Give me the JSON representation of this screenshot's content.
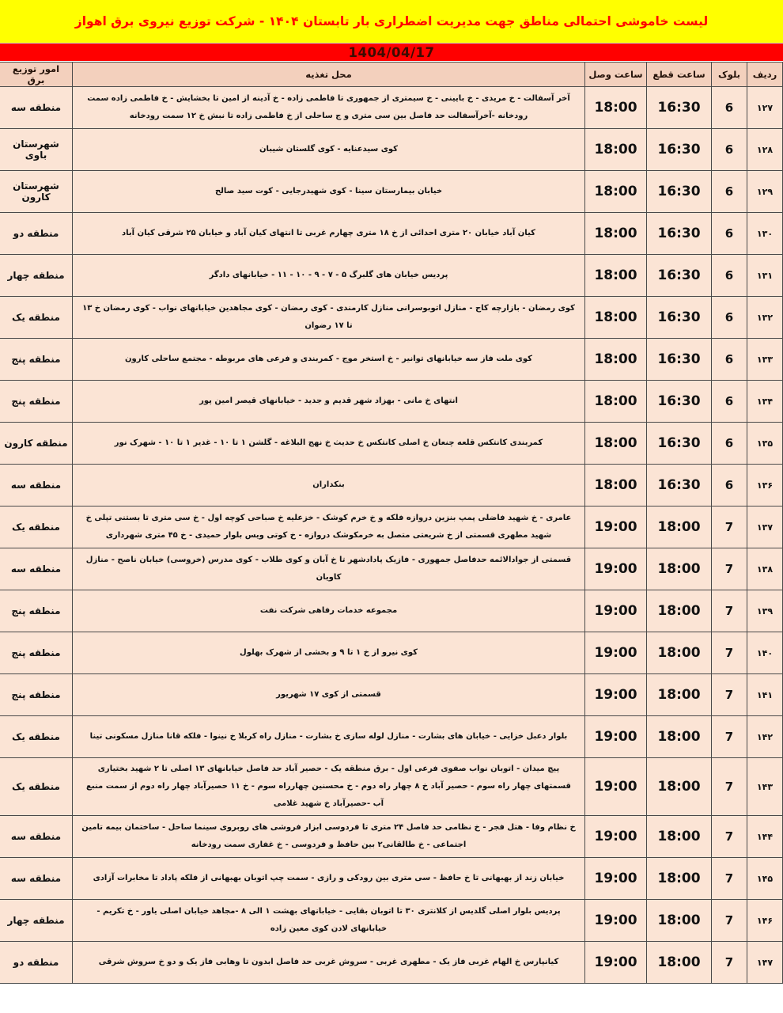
{
  "banner": {
    "title": "لیست خاموشی احتمالی مناطق جهت مدیریت اضطراری بار تابستان ۱۴۰۴ - شرکت توزیع نیروی برق اهواز"
  },
  "date_bar": {
    "date": "1404/04/17"
  },
  "colors": {
    "banner_bg": "#ffff00",
    "banner_text": "#ff0000",
    "date_bg": "#ff0000",
    "cell_bg": "#fbe4d5",
    "header_bg": "#f3d0bd",
    "border": "#4a4a4a"
  },
  "table": {
    "headers": {
      "row": "ردیف",
      "block": "بلوک",
      "cut_time": "ساعت قطع",
      "reconnect_time": "ساعت وصل",
      "location": "محل تغذیه",
      "district": "امور توزیع برق"
    },
    "rows": [
      {
        "row": "۱۲۷",
        "block": "6",
        "cut_time": "16:30",
        "reconnect_time": "18:00",
        "location": "آخر آسفالت - خ مریدی - خ بایینی - خ سیمتری از جمهوری تا فاطمی زاده - خ آدینه از امین تا بخشایش - خ فاطمی زاده سمت رودخانه -آخرآسفالت حد فاصل بین سی متری و ج ساحلی از خ فاطمی زاده تا نبش خ ۱۲ سمت رودخانه",
        "district": "منطقه سه"
      },
      {
        "row": "۱۲۸",
        "block": "6",
        "cut_time": "16:30",
        "reconnect_time": "18:00",
        "location": "کوی سیدعنایه - کوی گلستان شیبان",
        "district": "شهرستان باوی"
      },
      {
        "row": "۱۲۹",
        "block": "6",
        "cut_time": "16:30",
        "reconnect_time": "18:00",
        "location": "خیابان بیمارستان سینا - کوی شهیدرجایی - کوت سید صالح",
        "district": "شهرستان کارون"
      },
      {
        "row": "۱۳۰",
        "block": "6",
        "cut_time": "16:30",
        "reconnect_time": "18:00",
        "location": "کیان آباد خیابان ۲۰ متری احدائی از خ ۱۸ متری چهارم غربی تا انتهای کیان آباد و خیابان ۲۵ شرقی کیان آباد",
        "district": "منطقه دو"
      },
      {
        "row": "۱۳۱",
        "block": "6",
        "cut_time": "16:30",
        "reconnect_time": "18:00",
        "location": "پردیس خیابان های گلبرگ ۵ - ۷ - ۹ - ۱۰ - ۱۱ - خیابانهای دادگر",
        "district": "منطقه چهار"
      },
      {
        "row": "۱۳۲",
        "block": "6",
        "cut_time": "16:30",
        "reconnect_time": "18:00",
        "location": "کوی رمضان - بازارچه کاج - منازل اتوبوسرانی منازل کارمندی - کوی رمضان - کوی مجاهدین خیابانهای نواب - کوی رمضان خ ۱۳ تا ۱۷ رضوان",
        "district": "منطقه یک"
      },
      {
        "row": "۱۳۳",
        "block": "6",
        "cut_time": "16:30",
        "reconnect_time": "18:00",
        "location": "کوی ملت فاز سه خیابانهای توانیر - خ استخر موج - کمربندی و فرعی های مربوطه - مجتمع ساحلی کارون",
        "district": "منطقه پنج"
      },
      {
        "row": "۱۳۴",
        "block": "6",
        "cut_time": "16:30",
        "reconnect_time": "18:00",
        "location": "انتهای خ مانی - بهزاد شهر قدیم و جدید - خیابانهای قیصر امین پور",
        "district": "منطقه پنج"
      },
      {
        "row": "۱۳۵",
        "block": "6",
        "cut_time": "16:30",
        "reconnect_time": "18:00",
        "location": "کمربندی کانتکس قلعه چنعان خ اصلی کانتکس خ حدیث خ نهج البلاغه - گلشن ۱ تا ۱۰ - غدیر ۱ تا ۱۰ - شهرک نور",
        "district": "منطقه کارون"
      },
      {
        "row": "۱۳۶",
        "block": "6",
        "cut_time": "16:30",
        "reconnect_time": "18:00",
        "location": "بنکداران",
        "district": "منطقه سه"
      },
      {
        "row": "۱۳۷",
        "block": "7",
        "cut_time": "18:00",
        "reconnect_time": "19:00",
        "location": "عامری - خ شهید فاضلی پمپ بنزین دروازه فلکه و خ خرم کوشک - خزعلیه خ صباحی کوچه اول - خ سی متری تا بستنی تپلی خ شهید مطهری قسمتی از خ شریعتی متصل به خرمکوشک دروازه - خ کوتی ویس بلوار حمیدی - خ ۴۵ متری شهرداری",
        "district": "منطقه یک"
      },
      {
        "row": "۱۳۸",
        "block": "7",
        "cut_time": "18:00",
        "reconnect_time": "19:00",
        "location": "قسمتی از جوادالائمه حدفاصل جمهوری - فازیک پادادشهر تا خ آبان و کوی طلاب - کوی مدرس (خروسی) خیابان ناصح - منازل کاویان",
        "district": "منطقه سه"
      },
      {
        "row": "۱۳۹",
        "block": "7",
        "cut_time": "18:00",
        "reconnect_time": "19:00",
        "location": "مجموعه خدمات رفاهی شرکت نفت",
        "district": "منطقه پنج"
      },
      {
        "row": "۱۴۰",
        "block": "7",
        "cut_time": "18:00",
        "reconnect_time": "19:00",
        "location": "کوی نیرو از خ ۱ تا ۹ و بخشی از شهرک بهلول",
        "district": "منطقه پنج"
      },
      {
        "row": "۱۴۱",
        "block": "7",
        "cut_time": "18:00",
        "reconnect_time": "19:00",
        "location": "قسمتی از کوی ۱۷ شهریور",
        "district": "منطقه پنج"
      },
      {
        "row": "۱۴۲",
        "block": "7",
        "cut_time": "18:00",
        "reconnect_time": "19:00",
        "location": "بلوار دعبل خزایی - خیابان های بشارت - منازل لوله سازی خ بشارت - منازل راه کربلا خ نینوا - فلکه قانا منازل مسکونی تینا",
        "district": "منطقه یک"
      },
      {
        "row": "۱۴۳",
        "block": "7",
        "cut_time": "18:00",
        "reconnect_time": "19:00",
        "location": "پیچ میدان - اتوبان نواب صفوی فرعی اول - برق منطقه یک - حصیر آباد حد فاصل خیابانهای ۱۳ اصلی تا ۲ شهید بختیاری قسمتهای چهار راه سوم - حصیر آباد خ ۸ چهار راه دوم - خ محسنین چهارراه سوم - خ ۱۱ حصیرآباد چهار راه دوم از سمت منبع آب -حصیرآباد خ شهید غلامی",
        "district": "منطقه یک"
      },
      {
        "row": "۱۴۴",
        "block": "7",
        "cut_time": "18:00",
        "reconnect_time": "19:00",
        "location": "خ نظام وفا - هتل فجر - خ نظامی حد فاصل ۲۴ متری تا فردوسی ابزار فروشی های روبروی سینما ساحل - ساختمان بیمه تامین اجتماعی - خ طالقانی۲ بین حافظ و فردوسی - خ غفاری سمت رودخانه",
        "district": "منطقه سه"
      },
      {
        "row": "۱۴۵",
        "block": "7",
        "cut_time": "18:00",
        "reconnect_time": "19:00",
        "location": "خیابان زند از بهبهانی تا خ حافظ - سی متری بین رودکی و رازی - سمت چپ اتوبان بهبهانی از فلکه پاداد تا مخابرات آزادی",
        "district": "منطقه سه"
      },
      {
        "row": "۱۴۶",
        "block": "7",
        "cut_time": "18:00",
        "reconnect_time": "19:00",
        "location": "پردیس بلوار اصلی گلدیس از کلانتری ۳۰ تا اتوبان بقایی - خیابانهای بهشت ۱ الی ۸ -مجاهد خیابان اصلی یاور - خ تکریم - خیابانهای لادن کوی معین زاده",
        "district": "منطقه چهار"
      },
      {
        "row": "۱۴۷",
        "block": "7",
        "cut_time": "18:00",
        "reconnect_time": "19:00",
        "location": "کیانپارس خ الهام غربی فاز یک - مطهری غربی - سروش غربی حد فاصل ابدون تا وهابی فاز یک و دو خ سروش شرقی",
        "district": "منطقه دو"
      }
    ]
  }
}
